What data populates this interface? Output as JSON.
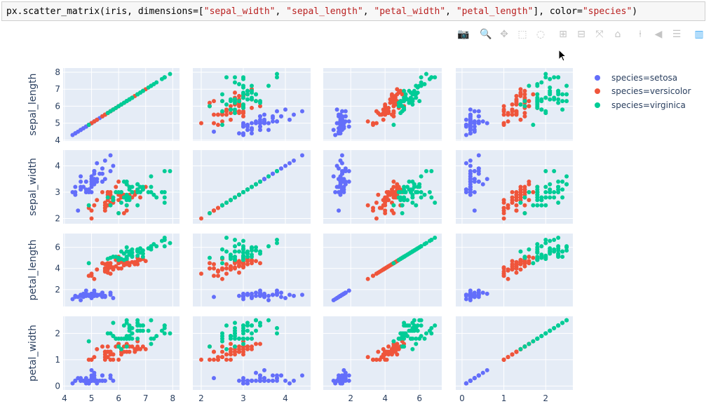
{
  "code_cell": {
    "prefix": "px.scatter_matrix(iris, dimensions=[",
    "dims": [
      "\"sepal_width\"",
      "\"sepal_length\"",
      "\"petal_width\"",
      "\"petal_length\""
    ],
    "mid": "], color=",
    "color_arg": "\"species\"",
    "suffix": ")"
  },
  "toolbar": [
    {
      "icon": "camera-icon",
      "glyph": "📷"
    },
    {
      "icon": "zoom-icon",
      "glyph": "🔍"
    },
    {
      "icon": "pan-icon",
      "glyph": "✥"
    },
    {
      "icon": "box-select-icon",
      "glyph": "⬚"
    },
    {
      "icon": "lasso-select-icon",
      "glyph": "◌"
    },
    {
      "icon": "zoom-in-icon",
      "glyph": "⊞"
    },
    {
      "icon": "zoom-out-icon",
      "glyph": "⊟"
    },
    {
      "icon": "autoscale-icon",
      "glyph": "⤧"
    },
    {
      "icon": "reset-axes-icon",
      "glyph": "⌂"
    },
    {
      "icon": "spike-lines-icon",
      "glyph": "⍿"
    },
    {
      "icon": "hover-closest-icon",
      "glyph": "◀"
    },
    {
      "icon": "hover-compare-icon",
      "glyph": "☰"
    },
    {
      "icon": "plotly-logo-icon",
      "glyph": "▥"
    }
  ],
  "colors": {
    "setosa": "#636efa",
    "versicolor": "#EF553B",
    "virginica": "#00cc96",
    "plot_bg": "#E5ECF6",
    "toolbar_active": "#3fa9f5"
  },
  "legend": [
    "species=setosa",
    "species=versicolor",
    "species=virginica"
  ],
  "chart_data": {
    "type": "scatter",
    "dimensions_shown": [
      "sepal_length",
      "sepal_width",
      "petal_length",
      "petal_width"
    ],
    "axis_titles": {
      "sepal_length": "sepal_length",
      "sepal_width": "sepal_width",
      "petal_length": "petal_length",
      "petal_width": "petal_width"
    },
    "ranges": {
      "sepal_length": [
        3.95,
        8.25
      ],
      "sepal_width": [
        1.8,
        4.6
      ],
      "petal_length": [
        0.4,
        7.3
      ],
      "petal_width": [
        -0.15,
        2.65
      ]
    },
    "ticks": {
      "sepal_length": [
        4,
        5,
        6,
        7,
        8
      ],
      "sepal_width": [
        2,
        3,
        4
      ],
      "petal_length": [
        2,
        4,
        6
      ],
      "petal_width": [
        0,
        1,
        2
      ]
    },
    "grid": true,
    "legend_position": "right",
    "columns_order": [
      "sepal_length",
      "sepal_width",
      "petal_length",
      "petal_width"
    ],
    "series": [
      {
        "name": "species=setosa",
        "points": [
          [
            5.1,
            3.5,
            1.4,
            0.2
          ],
          [
            4.9,
            3.0,
            1.4,
            0.2
          ],
          [
            4.7,
            3.2,
            1.3,
            0.2
          ],
          [
            4.6,
            3.1,
            1.5,
            0.2
          ],
          [
            5.0,
            3.6,
            1.4,
            0.2
          ],
          [
            5.4,
            3.9,
            1.7,
            0.4
          ],
          [
            4.6,
            3.4,
            1.4,
            0.3
          ],
          [
            5.0,
            3.4,
            1.5,
            0.2
          ],
          [
            4.4,
            2.9,
            1.4,
            0.2
          ],
          [
            4.9,
            3.1,
            1.5,
            0.1
          ],
          [
            5.4,
            3.7,
            1.5,
            0.2
          ],
          [
            4.8,
            3.4,
            1.6,
            0.2
          ],
          [
            4.8,
            3.0,
            1.4,
            0.1
          ],
          [
            4.3,
            3.0,
            1.1,
            0.1
          ],
          [
            5.8,
            4.0,
            1.2,
            0.2
          ],
          [
            5.7,
            4.4,
            1.5,
            0.4
          ],
          [
            5.4,
            3.9,
            1.3,
            0.4
          ],
          [
            5.1,
            3.5,
            1.4,
            0.3
          ],
          [
            5.7,
            3.8,
            1.7,
            0.3
          ],
          [
            5.1,
            3.8,
            1.5,
            0.3
          ],
          [
            5.4,
            3.4,
            1.7,
            0.2
          ],
          [
            5.1,
            3.7,
            1.5,
            0.4
          ],
          [
            4.6,
            3.6,
            1.0,
            0.2
          ],
          [
            5.1,
            3.3,
            1.7,
            0.5
          ],
          [
            4.8,
            3.4,
            1.9,
            0.2
          ],
          [
            5.0,
            3.0,
            1.6,
            0.2
          ],
          [
            5.0,
            3.4,
            1.6,
            0.4
          ],
          [
            5.2,
            3.5,
            1.5,
            0.2
          ],
          [
            5.2,
            3.4,
            1.4,
            0.2
          ],
          [
            4.7,
            3.2,
            1.6,
            0.2
          ],
          [
            4.8,
            3.1,
            1.6,
            0.2
          ],
          [
            5.4,
            3.4,
            1.5,
            0.4
          ],
          [
            5.2,
            4.1,
            1.5,
            0.1
          ],
          [
            5.5,
            4.2,
            1.4,
            0.2
          ],
          [
            4.9,
            3.1,
            1.5,
            0.1
          ],
          [
            5.0,
            3.2,
            1.2,
            0.2
          ],
          [
            5.5,
            3.5,
            1.3,
            0.2
          ],
          [
            4.9,
            3.1,
            1.5,
            0.1
          ],
          [
            4.4,
            3.0,
            1.3,
            0.2
          ],
          [
            5.1,
            3.4,
            1.5,
            0.2
          ],
          [
            5.0,
            3.5,
            1.3,
            0.3
          ],
          [
            4.5,
            2.3,
            1.3,
            0.3
          ],
          [
            4.4,
            3.2,
            1.3,
            0.2
          ],
          [
            5.0,
            3.5,
            1.6,
            0.6
          ],
          [
            5.1,
            3.8,
            1.9,
            0.4
          ],
          [
            4.8,
            3.0,
            1.4,
            0.3
          ],
          [
            5.1,
            3.8,
            1.6,
            0.2
          ],
          [
            4.6,
            3.2,
            1.4,
            0.2
          ],
          [
            5.3,
            3.7,
            1.5,
            0.2
          ],
          [
            5.0,
            3.3,
            1.4,
            0.2
          ]
        ]
      },
      {
        "name": "species=versicolor",
        "points": [
          [
            7.0,
            3.2,
            4.7,
            1.4
          ],
          [
            6.4,
            3.2,
            4.5,
            1.5
          ],
          [
            6.9,
            3.1,
            4.9,
            1.5
          ],
          [
            5.5,
            2.3,
            4.0,
            1.3
          ],
          [
            6.5,
            2.8,
            4.6,
            1.5
          ],
          [
            5.7,
            2.8,
            4.5,
            1.3
          ],
          [
            6.3,
            3.3,
            4.7,
            1.6
          ],
          [
            4.9,
            2.4,
            3.3,
            1.0
          ],
          [
            6.6,
            2.9,
            4.6,
            1.3
          ],
          [
            5.2,
            2.7,
            3.9,
            1.4
          ],
          [
            5.0,
            2.0,
            3.5,
            1.0
          ],
          [
            5.9,
            3.0,
            4.2,
            1.5
          ],
          [
            6.0,
            2.2,
            4.0,
            1.0
          ],
          [
            6.1,
            2.9,
            4.7,
            1.4
          ],
          [
            5.6,
            2.9,
            3.6,
            1.3
          ],
          [
            6.7,
            3.1,
            4.4,
            1.4
          ],
          [
            5.6,
            3.0,
            4.5,
            1.5
          ],
          [
            5.8,
            2.7,
            4.1,
            1.0
          ],
          [
            6.2,
            2.2,
            4.5,
            1.5
          ],
          [
            5.6,
            2.5,
            3.9,
            1.1
          ],
          [
            5.9,
            3.2,
            4.8,
            1.8
          ],
          [
            6.1,
            2.8,
            4.0,
            1.3
          ],
          [
            6.3,
            2.5,
            4.9,
            1.5
          ],
          [
            6.1,
            2.8,
            4.7,
            1.2
          ],
          [
            6.4,
            2.9,
            4.3,
            1.3
          ],
          [
            6.6,
            3.0,
            4.4,
            1.4
          ],
          [
            6.8,
            2.8,
            4.8,
            1.4
          ],
          [
            6.7,
            3.0,
            5.0,
            1.7
          ],
          [
            6.0,
            2.9,
            4.5,
            1.5
          ],
          [
            5.7,
            2.6,
            3.5,
            1.0
          ],
          [
            5.5,
            2.4,
            3.8,
            1.1
          ],
          [
            5.5,
            2.4,
            3.7,
            1.0
          ],
          [
            5.8,
            2.7,
            3.9,
            1.2
          ],
          [
            6.0,
            2.7,
            5.1,
            1.6
          ],
          [
            5.4,
            3.0,
            4.5,
            1.5
          ],
          [
            6.0,
            3.4,
            4.5,
            1.6
          ],
          [
            6.7,
            3.1,
            4.7,
            1.5
          ],
          [
            6.3,
            2.3,
            4.4,
            1.3
          ],
          [
            5.6,
            3.0,
            4.1,
            1.3
          ],
          [
            5.5,
            2.5,
            4.0,
            1.3
          ],
          [
            5.5,
            2.6,
            4.4,
            1.2
          ],
          [
            6.1,
            3.0,
            4.6,
            1.4
          ],
          [
            5.8,
            2.6,
            4.0,
            1.2
          ],
          [
            5.0,
            2.3,
            3.3,
            1.0
          ],
          [
            5.6,
            2.7,
            4.2,
            1.3
          ],
          [
            5.7,
            3.0,
            4.2,
            1.2
          ],
          [
            5.7,
            2.9,
            4.2,
            1.3
          ],
          [
            6.2,
            2.9,
            4.3,
            1.3
          ],
          [
            5.1,
            2.5,
            3.0,
            1.1
          ],
          [
            5.7,
            2.8,
            4.1,
            1.3
          ]
        ]
      },
      {
        "name": "species=virginica",
        "points": [
          [
            6.3,
            3.3,
            6.0,
            2.5
          ],
          [
            5.8,
            2.7,
            5.1,
            1.9
          ],
          [
            7.1,
            3.0,
            5.9,
            2.1
          ],
          [
            6.3,
            2.9,
            5.6,
            1.8
          ],
          [
            6.5,
            3.0,
            5.8,
            2.2
          ],
          [
            7.6,
            3.0,
            6.6,
            2.1
          ],
          [
            4.9,
            2.5,
            4.5,
            1.7
          ],
          [
            7.3,
            2.9,
            6.3,
            1.8
          ],
          [
            6.7,
            2.5,
            5.8,
            1.8
          ],
          [
            7.2,
            3.6,
            6.1,
            2.5
          ],
          [
            6.5,
            3.2,
            5.1,
            2.0
          ],
          [
            6.4,
            2.7,
            5.3,
            1.9
          ],
          [
            6.8,
            3.0,
            5.5,
            2.1
          ],
          [
            5.7,
            2.5,
            5.0,
            2.0
          ],
          [
            5.8,
            2.8,
            5.1,
            2.4
          ],
          [
            6.4,
            3.2,
            5.3,
            2.3
          ],
          [
            6.5,
            3.0,
            5.5,
            1.8
          ],
          [
            7.7,
            3.8,
            6.7,
            2.2
          ],
          [
            7.7,
            2.6,
            6.9,
            2.3
          ],
          [
            6.0,
            2.2,
            5.0,
            1.5
          ],
          [
            6.9,
            3.2,
            5.7,
            2.3
          ],
          [
            5.6,
            2.8,
            4.9,
            2.0
          ],
          [
            7.7,
            2.8,
            6.7,
            2.0
          ],
          [
            6.3,
            2.7,
            4.9,
            1.8
          ],
          [
            6.7,
            3.3,
            5.7,
            2.1
          ],
          [
            7.2,
            3.2,
            6.0,
            1.8
          ],
          [
            6.2,
            2.8,
            4.8,
            1.8
          ],
          [
            6.1,
            3.0,
            4.9,
            1.8
          ],
          [
            6.4,
            2.8,
            5.6,
            2.1
          ],
          [
            7.2,
            3.0,
            5.8,
            1.6
          ],
          [
            7.4,
            2.8,
            6.1,
            1.9
          ],
          [
            7.9,
            3.8,
            6.4,
            2.0
          ],
          [
            6.4,
            2.8,
            5.6,
            2.2
          ],
          [
            6.3,
            2.8,
            5.1,
            1.5
          ],
          [
            6.1,
            2.6,
            5.6,
            1.4
          ],
          [
            7.7,
            3.0,
            6.1,
            2.3
          ],
          [
            6.3,
            3.4,
            5.6,
            2.4
          ],
          [
            6.4,
            3.1,
            5.5,
            1.8
          ],
          [
            6.0,
            3.0,
            4.8,
            1.8
          ],
          [
            6.9,
            3.1,
            5.4,
            2.1
          ],
          [
            6.7,
            3.1,
            5.6,
            2.4
          ],
          [
            6.9,
            3.1,
            5.1,
            2.3
          ],
          [
            5.8,
            2.7,
            5.1,
            1.9
          ],
          [
            6.8,
            3.2,
            5.9,
            2.3
          ],
          [
            6.7,
            3.3,
            5.7,
            2.5
          ],
          [
            6.7,
            3.0,
            5.2,
            2.3
          ],
          [
            6.3,
            2.5,
            5.0,
            1.9
          ],
          [
            6.5,
            3.0,
            5.2,
            2.0
          ],
          [
            6.2,
            3.4,
            5.4,
            2.3
          ],
          [
            5.9,
            3.0,
            5.1,
            1.8
          ]
        ]
      }
    ]
  }
}
